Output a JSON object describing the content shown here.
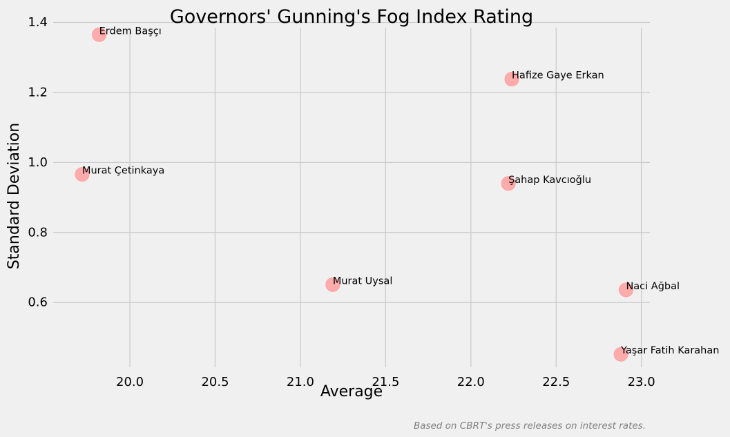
{
  "chart_data": {
    "type": "scatter",
    "title": "Governors' Gunning's Fog Index Rating",
    "xlabel": "Average",
    "ylabel": "Standard Deviation",
    "caption": "Based on CBRT's press releases on interest rates.",
    "xlim": [
      19.55,
      23.05
    ],
    "ylim": [
      0.415,
      1.405
    ],
    "xticks": [
      20.0,
      20.5,
      21.0,
      21.5,
      22.0,
      22.5,
      23.0
    ],
    "xtick_labels": [
      "20.0",
      "20.5",
      "21.0",
      "21.5",
      "22.0",
      "22.5",
      "23.0"
    ],
    "yticks": [
      0.6,
      0.8,
      1.0,
      1.2,
      1.4
    ],
    "ytick_labels": [
      "0.6",
      "0.8",
      "1.0",
      "1.2",
      "1.4"
    ],
    "grid": true,
    "marker_color": "#ff9f9f",
    "points": [
      {
        "label": "Erdem Başçı",
        "x": 19.82,
        "y": 1.365
      },
      {
        "label": "Hafize Gaye Erkan",
        "x": 22.24,
        "y": 1.238
      },
      {
        "label": "Murat Çetinkaya",
        "x": 19.72,
        "y": 0.966
      },
      {
        "label": "Şahap Kavcıoğlu",
        "x": 22.22,
        "y": 0.94
      },
      {
        "label": "Murat Uysal",
        "x": 21.19,
        "y": 0.651
      },
      {
        "label": "Naci Ağbal",
        "x": 22.91,
        "y": 0.636
      },
      {
        "label": "Yaşar Fatih Karahan",
        "x": 22.88,
        "y": 0.452
      }
    ]
  }
}
